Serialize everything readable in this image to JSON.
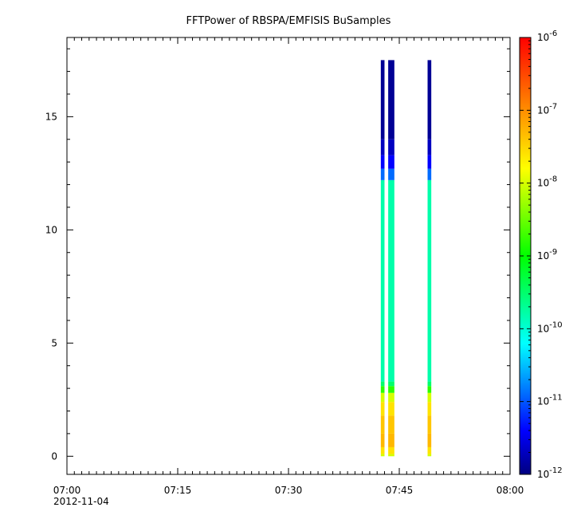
{
  "chart_data": {
    "type": "heatmap",
    "title": "FFTPower of RBSPA/EMFISIS  BuSamples",
    "xlabel": "",
    "ylabel": "",
    "x_tick_labels": [
      "07:00",
      "07:15",
      "07:30",
      "07:45",
      "08:00"
    ],
    "x_date_label": "2012-11-04",
    "xlim": [
      "07:00",
      "08:00"
    ],
    "ylim": [
      -0.8,
      18.5
    ],
    "y_ticks": [
      0,
      5,
      10,
      15
    ],
    "colorbar": {
      "scale": "log",
      "range": [
        1e-12,
        1e-06
      ],
      "tick_labels": [
        {
          "base": "10",
          "exp": "-12"
        },
        {
          "base": "10",
          "exp": "-11"
        },
        {
          "base": "10",
          "exp": "-10"
        },
        {
          "base": "10",
          "exp": "-9"
        },
        {
          "base": "10",
          "exp": "-8"
        },
        {
          "base": "10",
          "exp": "-7"
        },
        {
          "base": "10",
          "exp": "-6"
        }
      ],
      "colormap": [
        "#000080",
        "#0000ff",
        "#0080ff",
        "#00ffff",
        "#00ff80",
        "#00ff00",
        "#80ff00",
        "#ffff00",
        "#ffaa00",
        "#ff5500",
        "#ff0000"
      ]
    },
    "bursts": [
      {
        "start": "07:42:30",
        "end": "07:43:00"
      },
      {
        "start": "07:43:30",
        "end": "07:44:20"
      },
      {
        "start": "07:48:50",
        "end": "07:49:20"
      }
    ],
    "spectrum": [
      {
        "y0": 0.0,
        "y1": 0.1,
        "log10_power": -8.0
      },
      {
        "y0": 0.1,
        "y1": 0.4,
        "log10_power": -7.6
      },
      {
        "y0": 0.4,
        "y1": 1.0,
        "log10_power": -7.3
      },
      {
        "y0": 1.0,
        "y1": 1.8,
        "log10_power": -7.4
      },
      {
        "y0": 1.8,
        "y1": 2.4,
        "log10_power": -7.6
      },
      {
        "y0": 2.4,
        "y1": 2.8,
        "log10_power": -8.0
      },
      {
        "y0": 2.8,
        "y1": 3.1,
        "log10_power": -8.8
      },
      {
        "y0": 3.1,
        "y1": 3.3,
        "log10_power": -9.5
      },
      {
        "y0": 3.3,
        "y1": 12.2,
        "log10_power": -9.8
      },
      {
        "y0": 12.2,
        "y1": 12.7,
        "log10_power": -10.9
      },
      {
        "y0": 12.7,
        "y1": 13.3,
        "log10_power": -11.4
      },
      {
        "y0": 13.3,
        "y1": 14.0,
        "log10_power": -11.7
      },
      {
        "y0": 14.0,
        "y1": 17.5,
        "log10_power": -11.9
      }
    ]
  }
}
